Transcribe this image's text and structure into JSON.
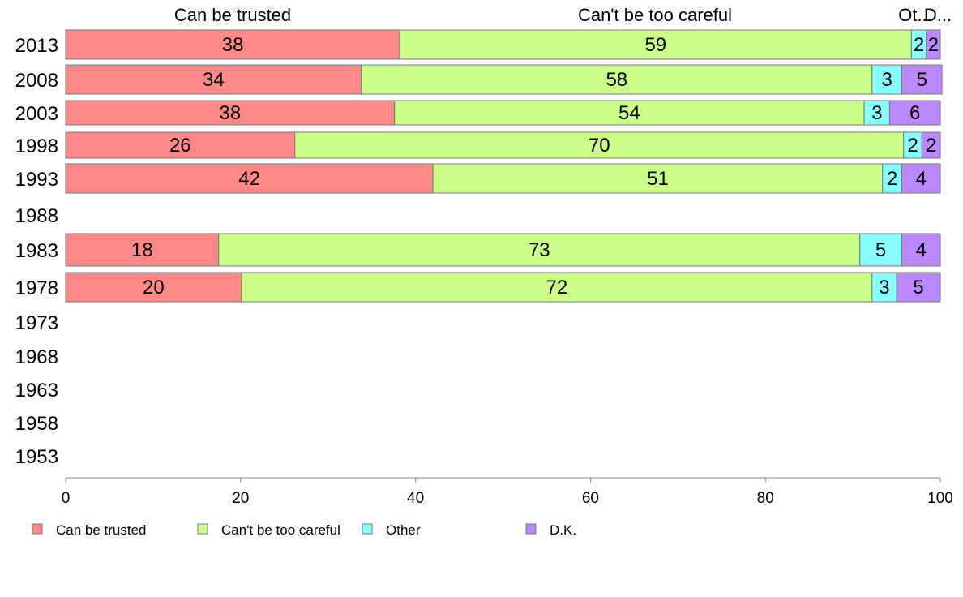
{
  "colors": {
    "can_be_trusted": "#ff8888",
    "cant_be_too_careful": "#ccff88",
    "other": "#88ffff",
    "dk": "#bb88ff"
  },
  "chart_data": {
    "type": "bar",
    "orientation": "horizontal",
    "stacked": true,
    "title": "",
    "xlabel": "",
    "ylabel": "",
    "xlim": [
      0,
      100
    ],
    "x_ticks": [
      0,
      20,
      40,
      60,
      80,
      100
    ],
    "grid": false,
    "legend_position": "bottom",
    "column_headers": [
      "Can be trusted",
      "Can't be too careful",
      "Ot...",
      "D..."
    ],
    "categories": [
      "2013",
      "2008",
      "2003",
      "1998",
      "1993",
      "1988",
      "1983",
      "1978",
      "1973",
      "1968",
      "1963",
      "1958",
      "1953"
    ],
    "series": [
      {
        "name": "Can be trusted",
        "values": [
          38.2,
          33.8,
          37.6,
          26.2,
          42.0,
          null,
          17.5,
          20.1,
          null,
          null,
          null,
          null,
          null
        ]
      },
      {
        "name": "Can't be too careful",
        "values": [
          58.5,
          58.4,
          53.7,
          69.6,
          51.4,
          null,
          73.3,
          72.1,
          null,
          null,
          null,
          null,
          null
        ]
      },
      {
        "name": "Other",
        "values": [
          1.7,
          3.4,
          2.9,
          2.1,
          2.2,
          null,
          4.8,
          2.8,
          null,
          null,
          null,
          null,
          null
        ]
      },
      {
        "name": "D.K.",
        "values": [
          1.6,
          4.6,
          5.8,
          2.1,
          4.4,
          null,
          4.4,
          5.0,
          null,
          null,
          null,
          null,
          null
        ]
      }
    ],
    "data_labels": [
      [
        "38",
        "59",
        "2",
        "2"
      ],
      [
        "34",
        "58",
        "3",
        "5"
      ],
      [
        "38",
        "54",
        "3",
        "6"
      ],
      [
        "26",
        "70",
        "2",
        "2"
      ],
      [
        "42",
        "51",
        "2",
        "4"
      ],
      [],
      [
        "18",
        "73",
        "5",
        "4"
      ],
      [
        "20",
        "72",
        "3",
        "5"
      ],
      [],
      [],
      [],
      [],
      []
    ]
  }
}
